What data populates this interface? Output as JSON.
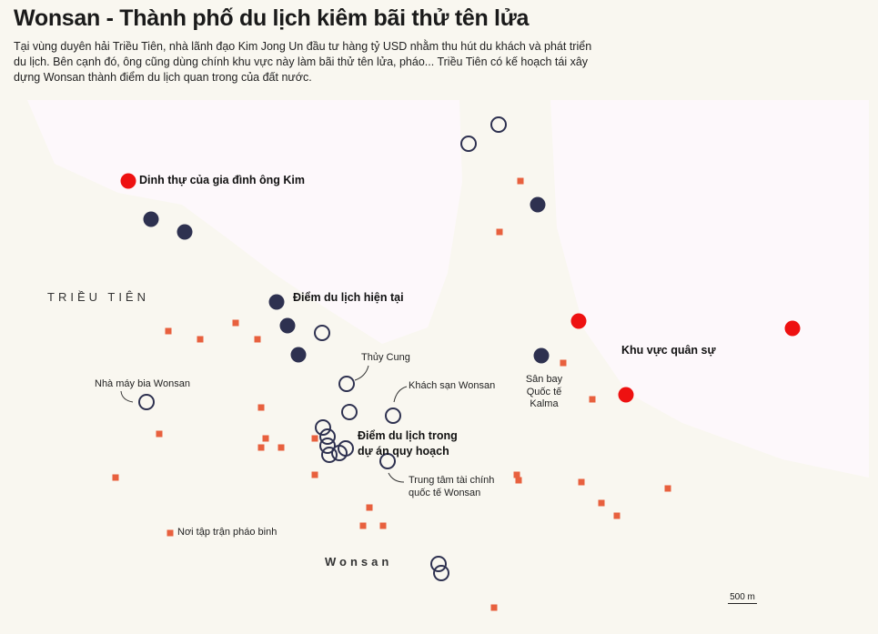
{
  "header": {
    "title": "Wonsan - Thành phố du lịch kiêm bãi thử tên lửa",
    "description": "Tại vùng duyên hải Triều Tiên, nhà lãnh đạo Kim Jong Un đầu tư hàng tỷ USD nhằm thu hút du khách và phát triển du lịch. Bên cạnh đó, ông cũng dùng chính khu vực này làm bãi thử tên lửa, pháo... Triều Tiên có kế hoạch tái xây dựng Wonsan thành điểm du lịch quan trong của đất nước."
  },
  "map": {
    "colors": {
      "land": "#f9f7f0",
      "sea": "#fdf8fb",
      "military": "#ee1111",
      "current_tourism": "#2e3150",
      "planned_tourism": "#2e3150",
      "artillery": "#e8603e"
    },
    "labels": {
      "country": "TRIỀU TIÊN",
      "city": "Wonsan",
      "kim_residence": "Dinh thự của gia đình ông Kim",
      "current_tourism": "Điểm du lịch hiện tại",
      "aquarium": "Thủy Cung",
      "brewery": "Nhà máy bia Wonsan",
      "hotel": "Khách sạn Wonsan",
      "planned_tourism_1": "Điểm du lịch trong",
      "planned_tourism_2": "dự án quy hoạch",
      "finance_1": "Trung tâm tài chính",
      "finance_2": "quốc tế Wonsan",
      "airport_1": "Sân bay",
      "airport_2": "Quốc tế",
      "airport_3": "Kalma",
      "military": "Khu vực quân sự",
      "artillery": "Nơi tập trận pháo binh"
    },
    "scale_bar": "500 m"
  }
}
